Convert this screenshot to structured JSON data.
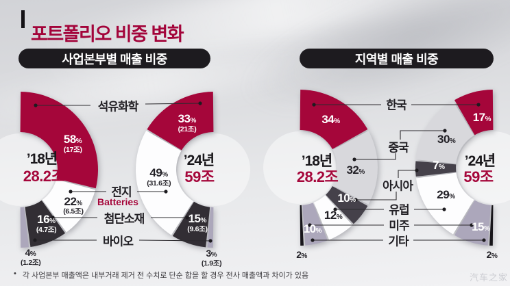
{
  "title": "포트폴리오 비중 변화",
  "percent_sign": "%",
  "colors": {
    "crimson": "#a5063a",
    "dark": "#322e34",
    "darkgray": "#45414a",
    "lightgray": "#d8d8dc",
    "lavender": "#aca7bb",
    "black": "#17151a",
    "white": "#fdfdfe"
  },
  "sections": {
    "business": {
      "pill": "사업본부별 매출 비중",
      "labels": {
        "petro": "석유화학",
        "battery": "전지",
        "battery_en": "Batteries",
        "advanced": "첨단소재",
        "bio": "바이오"
      }
    },
    "region": {
      "pill": "지역별 매출 비중",
      "labels": {
        "korea": "한국",
        "china": "중국",
        "asia": "아시아",
        "europe": "유럽",
        "americas": "미주",
        "others": "기타"
      }
    }
  },
  "footnote": {
    "bullet": "•",
    "text": "각 사업본부 매출액은 내부거래 제거 전 수치로 단순 합을 할 경우 전사 매출액과 차이가 있음"
  },
  "watermark": "汽车之家",
  "chart_data": [
    {
      "id": "biz18",
      "type": "donut",
      "section": "business",
      "year": "’18년",
      "total": "28.2조",
      "orientation": "right",
      "span_deg": 180,
      "segments": [
        {
          "key": "petro",
          "name": "석유화학",
          "value": 58,
          "pct": "58",
          "sub": "(17조)",
          "color": "crimson",
          "text": "white",
          "label_angle": 64,
          "label_r": 86
        },
        {
          "key": "battery",
          "name": "전지",
          "value": 22,
          "pct": "22",
          "sub": "(6.5조)",
          "color": "white",
          "text": "black",
          "label_angle": 124,
          "label_r": 94
        },
        {
          "key": "advanced",
          "name": "첨단소재",
          "value": 16,
          "pct": "16",
          "sub": "(4.7조)",
          "color": "dark",
          "text": "white",
          "label_angle": 154,
          "label_r": 88
        },
        {
          "key": "bio",
          "name": "바이오",
          "value": 4,
          "pct": "4",
          "sub": "(1.2조)",
          "color": "lavender",
          "text": "black",
          "label_angle": 173,
          "label_r": 129
        }
      ]
    },
    {
      "id": "biz24",
      "type": "donut",
      "section": "business",
      "year": "’24년",
      "total": "59조",
      "orientation": "left",
      "span_deg": 180,
      "segments": [
        {
          "key": "petro",
          "name": "석유화학",
          "value": 33,
          "pct": "33",
          "sub": "(21조)",
          "color": "crimson",
          "text": "white",
          "label_angle": 30,
          "label_r": 78
        },
        {
          "key": "battery",
          "name": "전지",
          "value": 49,
          "pct": "49",
          "sub": "(31.6조)",
          "color": "white",
          "text": "black",
          "label_angle": 98,
          "label_r": 81
        },
        {
          "key": "advanced",
          "name": "첨단소재",
          "value": 15,
          "pct": "15",
          "sub": "(9.6조)",
          "color": "dark",
          "text": "white",
          "label_angle": 163,
          "label_r": 82
        },
        {
          "key": "bio",
          "name": "바이오",
          "value": 3,
          "pct": "3",
          "sub": "(1.9조)",
          "color": "lavender",
          "text": "black",
          "label_angle": 178.5,
          "label_r": 129
        }
      ]
    },
    {
      "id": "reg18",
      "type": "donut",
      "section": "region",
      "year": "’18년",
      "total": "28.2조",
      "orientation": "right",
      "span_deg": 180,
      "segments": [
        {
          "key": "korea",
          "name": "한국",
          "value": 34,
          "pct": "34",
          "color": "crimson",
          "text": "white",
          "label_angle": 33,
          "label_r": 84
        },
        {
          "key": "china",
          "name": "중국",
          "value": 32,
          "pct": "32",
          "color": "lightgray",
          "text": "black",
          "label_angle": 93,
          "label_r": 82
        },
        {
          "key": "asia",
          "name": "아시아",
          "value": 10,
          "pct": "10",
          "color": "darkgray",
          "text": "white",
          "label_angle": 123,
          "label_r": 82
        },
        {
          "key": "europe",
          "name": "유럽",
          "value": 12,
          "pct": "12",
          "color": "white",
          "text": "black",
          "label_angle": 145,
          "label_r": 86
        },
        {
          "key": "americas",
          "name": "미주",
          "value": 10,
          "pct": "10",
          "color": "lavender",
          "text": "white",
          "label_angle": 168,
          "label_r": 92
        },
        {
          "key": "others",
          "name": "기타",
          "value": 2,
          "pct": "2",
          "color": "black",
          "text": "black",
          "label_angle": 178.5,
          "label_r": 128
        }
      ]
    },
    {
      "id": "reg24",
      "type": "donut",
      "section": "region",
      "year": "’24년",
      "total": "59조",
      "orientation": "left",
      "span_deg": 180,
      "segments": [
        {
          "key": "korea",
          "name": "한국",
          "value": 17,
          "pct": "17",
          "color": "crimson",
          "text": "white",
          "label_angle": 13,
          "label_r": 75
        },
        {
          "key": "china",
          "name": "중국",
          "value": 30,
          "pct": "30",
          "color": "lightgray",
          "text": "black",
          "label_angle": 59,
          "label_r": 80
        },
        {
          "key": "asia",
          "name": "아시아",
          "value": 7,
          "pct": "7",
          "color": "darkgray",
          "text": "white",
          "label_angle": 88,
          "label_r": 80
        },
        {
          "key": "europe",
          "name": "유럽",
          "value": 29,
          "pct": "29",
          "color": "white",
          "text": "black",
          "label_angle": 120,
          "label_r": 80
        },
        {
          "key": "americas",
          "name": "미주",
          "value": 15,
          "pct": "15",
          "color": "lavender",
          "text": "white",
          "label_angle": 168,
          "label_r": 89
        },
        {
          "key": "others",
          "name": "기타",
          "value": 2,
          "pct": "2",
          "color": "black",
          "text": "black",
          "label_angle": 179,
          "label_r": 128
        }
      ]
    }
  ]
}
